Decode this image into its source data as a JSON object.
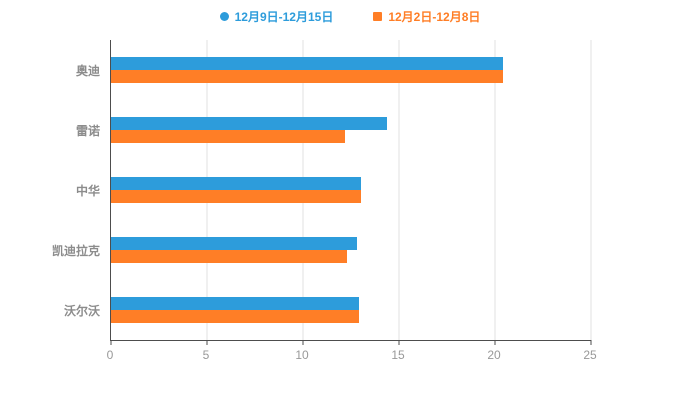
{
  "legend": {
    "items": [
      {
        "label": "12月9日-12月15日",
        "color": "#2D9CDB",
        "marker": "circle"
      },
      {
        "label": "12月2日-12月8日",
        "color": "#FF7E26",
        "marker": "square"
      }
    ]
  },
  "chart_data": {
    "type": "bar",
    "orientation": "horizontal",
    "title": "",
    "xlabel": "",
    "ylabel": "",
    "categories": [
      "奥迪",
      "雷诺",
      "中华",
      "凯迪拉克",
      "沃尔沃"
    ],
    "series": [
      {
        "name": "12月9日-12月15日",
        "color": "#2D9CDB",
        "values": [
          20.4,
          14.4,
          13.0,
          12.8,
          12.9
        ]
      },
      {
        "name": "12月2日-12月8日",
        "color": "#FF7E26",
        "values": [
          20.4,
          12.2,
          13.0,
          12.3,
          12.9
        ]
      }
    ],
    "xticks": [
      0,
      5,
      10,
      15,
      20,
      25
    ],
    "xlim": [
      0,
      25
    ],
    "grid": true,
    "legend_position": "top"
  }
}
